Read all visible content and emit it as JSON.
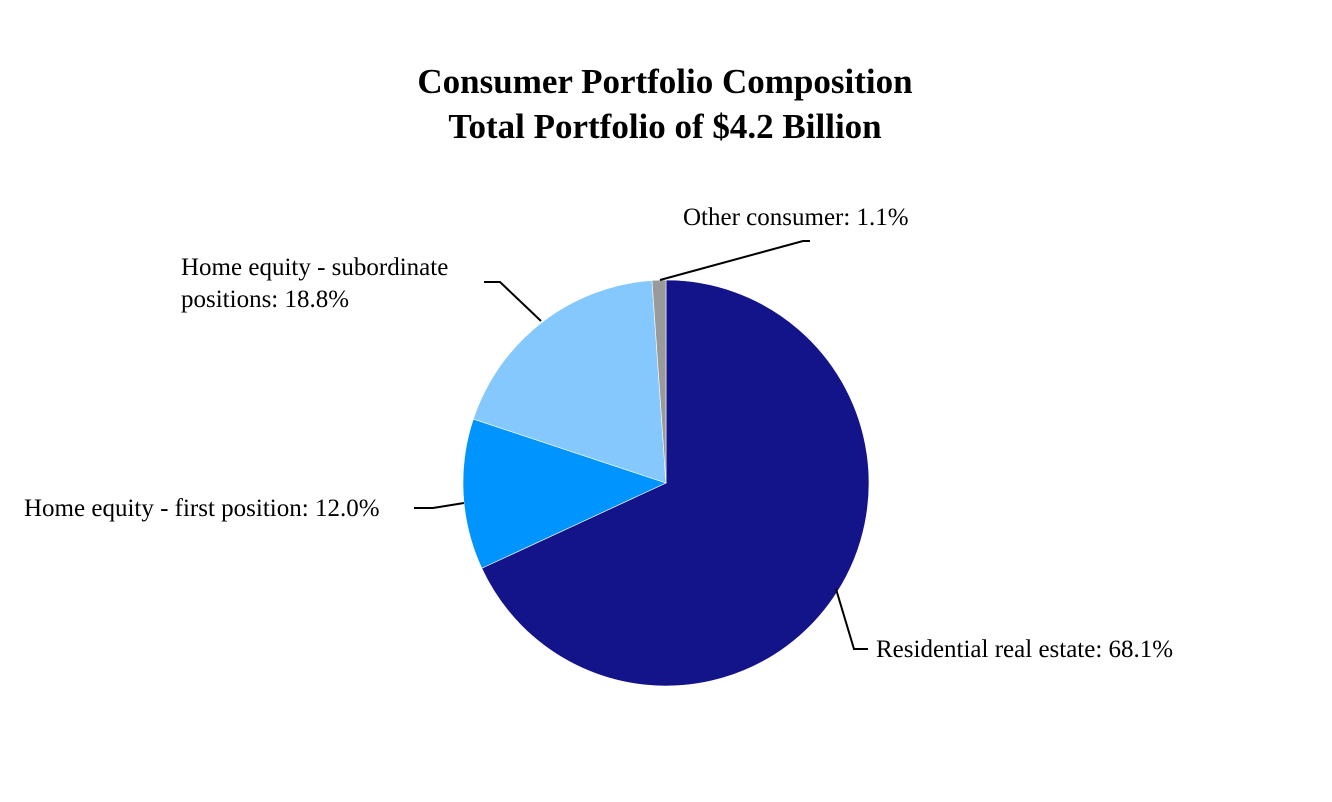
{
  "chart_data": {
    "type": "pie",
    "title": "Consumer Portfolio Composition",
    "subtitle": "Total Portfolio of $4.2 Billion",
    "start": "12 o'clock, clockwise",
    "slices": [
      {
        "name": "Residential real estate",
        "value": 68.1,
        "label": "Residential real estate: 68.1%",
        "color": "#14148A"
      },
      {
        "name": "Home equity - first position",
        "value": 12.0,
        "label": "Home equity - first position: 12.0%",
        "color": "#0094FF"
      },
      {
        "name": "Home equity - subordinate positions",
        "value": 18.8,
        "label_lines": [
          "Home equity - subordinate",
          "positions: 18.8%"
        ],
        "color": "#85C8FD"
      },
      {
        "name": "Other consumer",
        "value": 1.1,
        "label": "Other consumer: 1.1%",
        "color": "#9A9A9A"
      }
    ]
  }
}
